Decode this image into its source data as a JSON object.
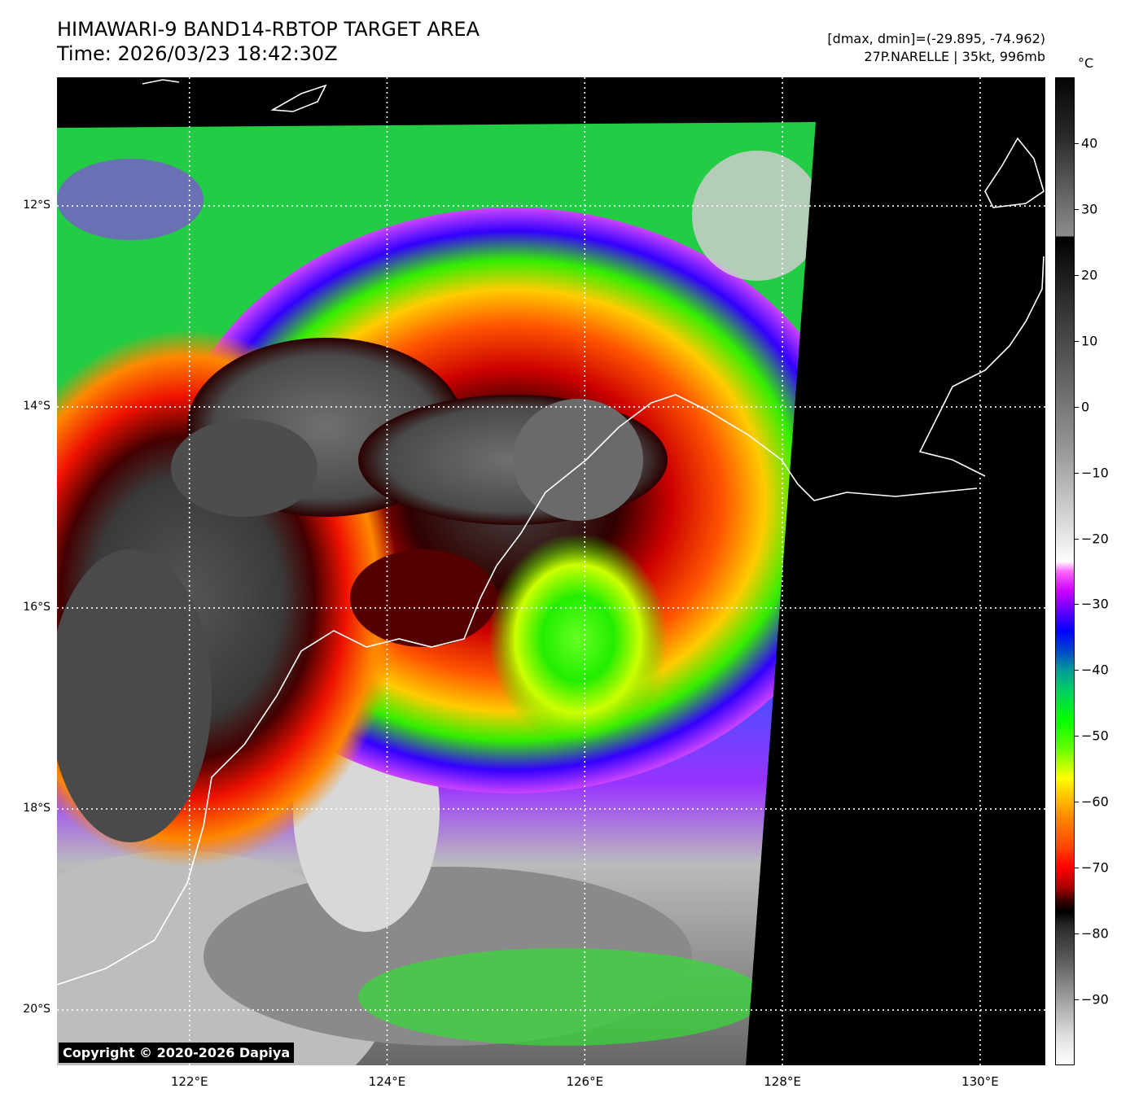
{
  "title_line1": "HIMAWARI-9 BAND14-RBTOP TARGET AREA",
  "title_line2": "Time: 2026/03/23 18:42:30Z",
  "info_line1": "[dmax, dmin]=(-29.895, -74.962)",
  "info_line2": "27P.NARELLE | 35kt, 996mb",
  "colorbar": {
    "unit": "°C",
    "ticks": [
      "40",
      "30",
      "20",
      "10",
      "0",
      "−10",
      "−20",
      "−30",
      "−40",
      "−50",
      "−60",
      "−70",
      "−80",
      "−90"
    ],
    "tick_values": [
      40,
      30,
      20,
      10,
      0,
      -10,
      -20,
      -30,
      -40,
      -50,
      -60,
      -70,
      -80,
      -90
    ],
    "range": [
      -100,
      50
    ]
  },
  "lat_labels": [
    "12°S",
    "14°S",
    "16°S",
    "18°S",
    "20°S"
  ],
  "lat_values": [
    -12,
    -14,
    -16,
    -18,
    -20
  ],
  "lon_labels": [
    "122°E",
    "124°E",
    "126°E",
    "128°E",
    "130°E"
  ],
  "lon_values": [
    122,
    124,
    126,
    128,
    130
  ],
  "map_extent": {
    "lon": [
      120.66,
      130.66
    ],
    "lat": [
      -10.72,
      -20.55
    ]
  },
  "copyright": "Copyright © 2020-2026 Dapiya",
  "colors": {
    "grid": "#ffffff",
    "coastline": "#ffffff",
    "background": "#000000"
  }
}
